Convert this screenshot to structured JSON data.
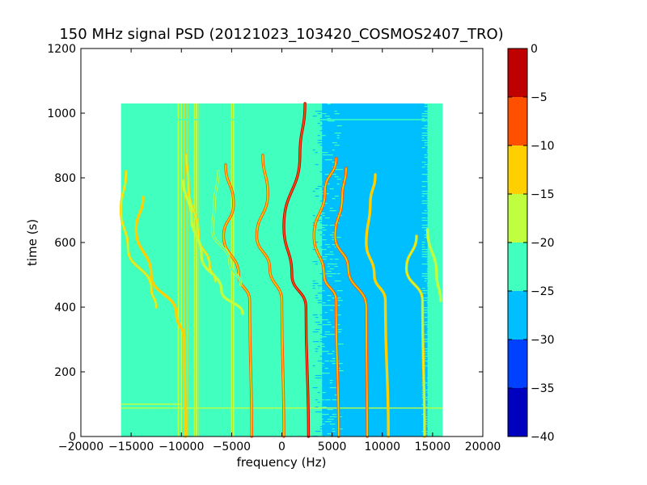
{
  "chart_data": {
    "type": "heatmap",
    "title": "150 MHz signal PSD (20121023_103420_COSMOS2407_TRO)",
    "xlabel": "frequency (Hz)",
    "ylabel": "time (s)",
    "xlim": [
      -20000,
      20000
    ],
    "ylim": [
      0,
      1200
    ],
    "xticks": [
      -20000,
      -15000,
      -10000,
      -5000,
      0,
      5000,
      10000,
      15000,
      20000
    ],
    "yticks": [
      0,
      200,
      400,
      600,
      800,
      1000,
      1200
    ],
    "xticklabels": [
      "−20000",
      "−15000",
      "−10000",
      "−5000",
      "0",
      "5000",
      "10000",
      "15000",
      "20000"
    ],
    "yticklabels": [
      "0",
      "200",
      "400",
      "600",
      "800",
      "1000",
      "1200"
    ],
    "data_extent": {
      "x": [
        -16000,
        16000
      ],
      "y": [
        0,
        1030
      ]
    },
    "background_levels": {
      "edges": -25,
      "center_region": [
        -7000,
        4000
      ],
      "center": -22,
      "right_region": [
        4000,
        14500
      ],
      "right": -27
    },
    "colorbar": {
      "levels": [
        -40,
        -35,
        -30,
        -25,
        -20,
        -15,
        -10,
        -5,
        0
      ],
      "colors": [
        "#0000bf",
        "#0040ff",
        "#00bfff",
        "#40ffbf",
        "#bfff40",
        "#ffcf00",
        "#ff5000",
        "#bf0000"
      ],
      "ticklabels": [
        "0",
        "−5",
        "−10",
        "−15",
        "−20",
        "−25",
        "−30",
        "−35",
        "−40"
      ],
      "grid": false
    },
    "series": [
      {
        "points": [
          [
            2300,
            1030
          ],
          [
            1800,
            870
          ],
          [
            200,
            650
          ],
          [
            1000,
            500
          ],
          [
            2400,
            400
          ],
          [
            2650,
            0
          ]
        ],
        "level": -7
      },
      {
        "points": [
          [
            5400,
            860
          ],
          [
            4300,
            760
          ],
          [
            3200,
            620
          ],
          [
            4200,
            500
          ],
          [
            5400,
            420
          ],
          [
            5650,
            0
          ]
        ],
        "level": -12
      },
      {
        "points": [
          [
            -1900,
            870
          ],
          [
            -1400,
            750
          ],
          [
            -2500,
            620
          ],
          [
            -1200,
            520
          ],
          [
            0,
            420
          ],
          [
            200,
            0
          ]
        ],
        "level": -12
      },
      {
        "points": [
          [
            -5600,
            840
          ],
          [
            -4800,
            720
          ],
          [
            -5800,
            620
          ],
          [
            -4300,
            500
          ],
          [
            -3200,
            420
          ],
          [
            -3000,
            0
          ]
        ],
        "level": -13
      },
      {
        "points": [
          [
            6400,
            830
          ],
          [
            6000,
            740
          ],
          [
            5300,
            620
          ],
          [
            6600,
            520
          ],
          [
            8400,
            400
          ],
          [
            8500,
            0
          ]
        ],
        "level": -14
      },
      {
        "points": [
          [
            9300,
            810
          ],
          [
            8800,
            720
          ],
          [
            8400,
            600
          ],
          [
            9200,
            500
          ],
          [
            10300,
            420
          ],
          [
            10600,
            0
          ]
        ],
        "level": -15
      },
      {
        "points": [
          [
            -13800,
            740
          ],
          [
            -14500,
            640
          ],
          [
            -13000,
            500
          ],
          [
            -10500,
            380
          ],
          [
            -9700,
            300
          ],
          [
            -9600,
            0
          ]
        ],
        "level": -15
      },
      {
        "points": [
          [
            -15500,
            820
          ],
          [
            -16000,
            700
          ],
          [
            -15300,
            580
          ],
          [
            -13000,
            460
          ],
          [
            -12500,
            400
          ]
        ],
        "level": -18
      },
      {
        "points": [
          [
            13400,
            620
          ],
          [
            12400,
            520
          ],
          [
            14000,
            420
          ],
          [
            14200,
            0
          ]
        ],
        "level": -19
      },
      {
        "points": [
          [
            -9500,
            870
          ],
          [
            -9300,
            780
          ],
          [
            -8300,
            620
          ],
          [
            -7200,
            530
          ],
          [
            -6600,
            480
          ]
        ],
        "level": -19
      },
      {
        "points": [
          [
            -9800,
            790
          ],
          [
            -9000,
            680
          ],
          [
            -8000,
            560
          ],
          [
            -6000,
            450
          ],
          [
            -3900,
            380
          ]
        ],
        "level": -20
      },
      {
        "points": [
          [
            14500,
            640
          ],
          [
            15400,
            500
          ],
          [
            15800,
            420
          ]
        ],
        "level": -20
      },
      {
        "points": [
          [
            -6300,
            820
          ],
          [
            -6700,
            720
          ],
          [
            -6900,
            640
          ],
          [
            -5200,
            540
          ],
          [
            -4100,
            470
          ]
        ],
        "level": -21
      }
    ],
    "vertical_lines": [
      {
        "x": -10300,
        "level": -16
      },
      {
        "x": -10000,
        "level": -18
      },
      {
        "x": -9700,
        "level": -15
      },
      {
        "x": -9400,
        "level": -14
      },
      {
        "x": -8700,
        "level": -17
      },
      {
        "x": -8500,
        "level": -19
      },
      {
        "x": -8300,
        "level": -15
      },
      {
        "x": -11500,
        "level": -21
      },
      {
        "x": -5000,
        "level": -18
      },
      {
        "x": -4800,
        "level": -20
      },
      {
        "x": -7400,
        "level": -21
      }
    ],
    "horizontal_lines": [
      {
        "y": 100,
        "x": [
          -16000,
          -10000
        ],
        "level": -19
      },
      {
        "y": 88,
        "x": [
          -16000,
          16000
        ],
        "level": -20
      },
      {
        "y": 980,
        "x": [
          -16000,
          16000
        ],
        "level": -22
      }
    ]
  }
}
